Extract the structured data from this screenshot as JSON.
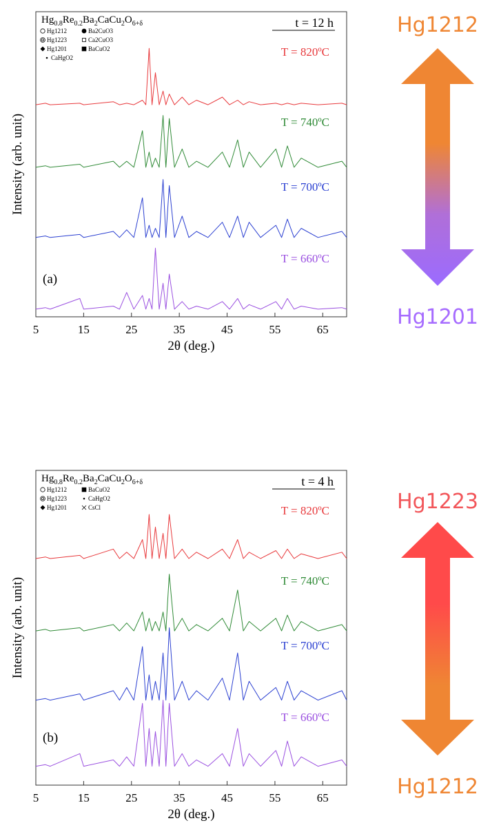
{
  "chart_data": [
    {
      "type": "line",
      "panel": "(a)",
      "title_parts": [
        "Hg",
        "0.8",
        "Re",
        "0.2",
        "Ba",
        "2",
        "CaCu",
        "2",
        "O",
        "6+δ"
      ],
      "time": "t = 12 h",
      "legend": [
        "Hg1212",
        "Hg1223",
        "Hg1201",
        "CaHgO2",
        "Ba2CuO3",
        "Ca2CuO3",
        "BaCuO2"
      ],
      "xlabel": "2θ (deg.)",
      "ylabel": "Intensity (arb. unit)",
      "x": [
        5,
        7,
        8,
        14.2,
        15,
        21.2,
        22.5,
        24,
        25.5,
        27.3,
        28,
        28.7,
        29.3,
        30,
        30.8,
        31.6,
        32.2,
        32.9,
        34,
        35.6,
        37,
        38.6,
        41,
        44,
        45.5,
        47.2,
        48.4,
        49.6,
        52,
        55.2,
        56.4,
        57.6,
        59,
        60.5,
        64,
        69,
        70
      ],
      "xlim": [
        5,
        70
      ],
      "xticks": [
        5,
        15,
        25,
        35,
        45,
        55,
        65
      ],
      "ylim": [
        0,
        100
      ],
      "series": [
        {
          "name": "T = 820ºC",
          "color": "#e8383b",
          "values": [
            69.5,
            70,
            69.5,
            70,
            69.5,
            70.5,
            69.5,
            70,
            69.5,
            71,
            69.5,
            88,
            69.5,
            80,
            69.5,
            74,
            69.5,
            73,
            69.5,
            72,
            69.5,
            71,
            69.5,
            72,
            69.5,
            71,
            69.5,
            70.5,
            69.5,
            70,
            69.5,
            70,
            69.5,
            70,
            69.5,
            70,
            69.5
          ]
        },
        {
          "name": "T = 740ºC",
          "color": "#2f8a36",
          "values": [
            49,
            49.5,
            49,
            50,
            49,
            51,
            49,
            51,
            49,
            61,
            49,
            54,
            49,
            52,
            49,
            66,
            49,
            65,
            49,
            55,
            49,
            51,
            49,
            54,
            49,
            58,
            49,
            54,
            49,
            55,
            49,
            56,
            49,
            52,
            49,
            51,
            49
          ]
        },
        {
          "name": "T = 700ºC",
          "color": "#2a3fd1",
          "values": [
            26,
            26.5,
            26,
            27,
            26,
            28,
            26,
            28.5,
            26,
            39,
            26,
            30,
            26,
            29,
            26,
            45,
            26,
            43,
            26,
            33,
            26,
            28,
            26,
            31,
            26,
            33,
            26,
            31,
            26,
            30,
            26,
            32,
            26,
            29,
            26,
            28,
            26
          ]
        },
        {
          "name": "T = 660ºC",
          "color": "#9a4fe0",
          "values": [
            2.5,
            3,
            2.5,
            6,
            2.5,
            3.5,
            2.5,
            8,
            2.5,
            7,
            2.5,
            6,
            2.5,
            22.5,
            2.5,
            11,
            2.5,
            14,
            2.5,
            5,
            2.5,
            3.5,
            2.5,
            5,
            2.5,
            6,
            2.5,
            4,
            2.5,
            5,
            2.5,
            6,
            2.5,
            3.5,
            2.5,
            3,
            2.5
          ]
        }
      ]
    },
    {
      "type": "line",
      "panel": "(b)",
      "title_parts": [
        "Hg",
        "0.8",
        "Re",
        "0.2",
        "Ba",
        "2",
        "CaCu",
        "2",
        "O",
        "6+δ"
      ],
      "time": "t = 4 h",
      "legend": [
        "Hg1212",
        "Hg1223",
        "Hg1201",
        "BaCuO2",
        "CaHgO2",
        "CsCl"
      ],
      "xlabel": "2θ (deg.)",
      "ylabel": "Intensity (arb. unit)",
      "x": [
        5,
        7,
        8,
        14.2,
        15,
        21.2,
        22.5,
        24,
        25.5,
        27.3,
        28,
        28.7,
        29.3,
        30,
        30.8,
        31.6,
        32.2,
        32.9,
        34,
        35.6,
        37,
        38.6,
        41,
        44,
        45.5,
        47.2,
        48.4,
        49.6,
        52,
        55.2,
        56.4,
        57.6,
        59,
        60.5,
        64,
        69,
        70
      ],
      "xlim": [
        5,
        70
      ],
      "xticks": [
        5,
        15,
        25,
        35,
        45,
        55,
        65
      ],
      "ylim": [
        0,
        100
      ],
      "series": [
        {
          "name": "T = 820ºC",
          "color": "#e8383b",
          "values": [
            72,
            72.5,
            72,
            73,
            72,
            75,
            72,
            74,
            72,
            78,
            72,
            86,
            72,
            82,
            72,
            80,
            72,
            86,
            72,
            75,
            72,
            74,
            72,
            75,
            72,
            78,
            72,
            74,
            72,
            74.5,
            72,
            75,
            72,
            73.5,
            72,
            74,
            72
          ]
        },
        {
          "name": "T = 740ºC",
          "color": "#2f8a36",
          "values": [
            49,
            49.5,
            49,
            50,
            49,
            51,
            49,
            51.5,
            49,
            55,
            49,
            53,
            49,
            52,
            49,
            55,
            49,
            67,
            49,
            53,
            49,
            51,
            49,
            53,
            49,
            62,
            49,
            52,
            49,
            53,
            49,
            54,
            49,
            52,
            49,
            51,
            49
          ]
        },
        {
          "name": "T = 700ºC",
          "color": "#2a3fd1",
          "values": [
            27,
            27.5,
            27,
            29,
            27,
            30,
            27,
            31,
            27,
            44,
            27,
            35,
            27,
            33,
            27,
            42,
            27,
            50,
            27,
            33,
            27,
            30,
            27,
            34,
            27,
            42,
            27,
            33,
            27,
            31,
            27,
            33,
            27,
            30,
            27,
            30,
            27
          ]
        },
        {
          "name": "T = 660ºC",
          "color": "#9a4fe0",
          "values": [
            6,
            6.5,
            6,
            10,
            6,
            8,
            6,
            9,
            6,
            26,
            6,
            18,
            6,
            17,
            6,
            27,
            6,
            26,
            6,
            10,
            6,
            8,
            6,
            10,
            6,
            18,
            6,
            10,
            6,
            11,
            6,
            14,
            6,
            9,
            6,
            8,
            6
          ]
        }
      ]
    }
  ],
  "side_labels": {
    "upper": {
      "top": "Hg1212",
      "bottom": "Hg1201"
    },
    "lower": {
      "top": "Hg1223",
      "bottom": "Hg1212"
    }
  }
}
